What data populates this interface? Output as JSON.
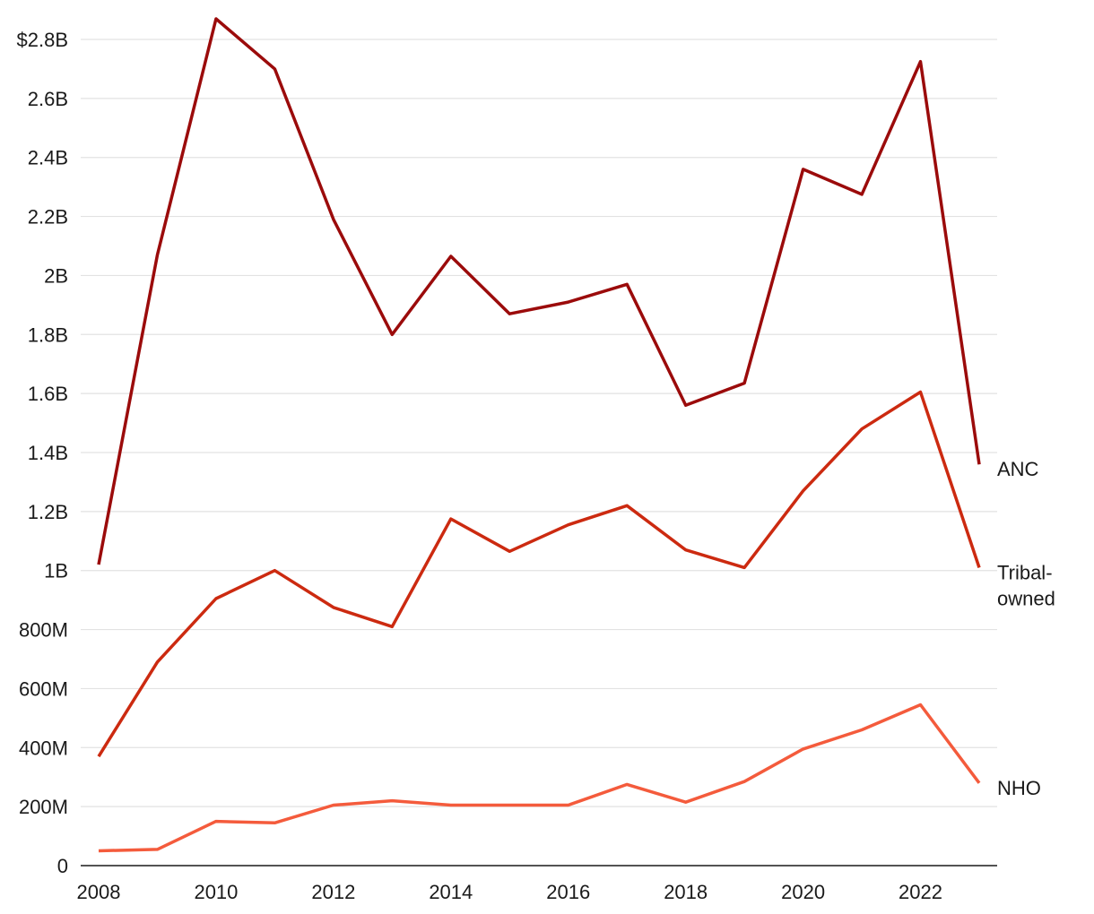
{
  "chart_data": {
    "type": "line",
    "x": [
      2008,
      2009,
      2010,
      2011,
      2012,
      2013,
      2014,
      2015,
      2016,
      2017,
      2018,
      2019,
      2020,
      2021,
      2022,
      2023
    ],
    "xlim": [
      2008,
      2023
    ],
    "ylim": [
      0,
      2800000000
    ],
    "x_ticks": [
      2008,
      2010,
      2012,
      2014,
      2016,
      2018,
      2020,
      2022
    ],
    "x_tick_labels": [
      "2008",
      "2010",
      "2012",
      "2014",
      "2016",
      "2018",
      "2020",
      "2022"
    ],
    "y_ticks": [
      0,
      200000000,
      400000000,
      600000000,
      800000000,
      1000000000,
      1200000000,
      1400000000,
      1600000000,
      1800000000,
      2000000000,
      2200000000,
      2400000000,
      2600000000,
      2800000000
    ],
    "y_tick_labels": [
      "0",
      "200M",
      "400M",
      "600M",
      "800M",
      "1B",
      "1.2B",
      "1.4B",
      "1.6B",
      "1.8B",
      "2B",
      "2.2B",
      "2.4B",
      "2.6B",
      "$2.8B"
    ],
    "grid": true,
    "legend": "direct labels at line ends (right)",
    "series": [
      {
        "name": "ANC",
        "label_lines": [
          "ANC"
        ],
        "color": "#9b0b0b",
        "values": [
          1020000000,
          2070000000,
          2870000000,
          2700000000,
          2190000000,
          1800000000,
          2065000000,
          1870000000,
          1910000000,
          1970000000,
          1560000000,
          1635000000,
          2360000000,
          2275000000,
          2725000000,
          1360000000
        ]
      },
      {
        "name": "Tribal-owned",
        "label_lines": [
          "Tribal-",
          "owned"
        ],
        "color": "#cc2a10",
        "values": [
          370000000,
          690000000,
          905000000,
          1000000000,
          875000000,
          810000000,
          1175000000,
          1065000000,
          1155000000,
          1220000000,
          1070000000,
          1010000000,
          1270000000,
          1480000000,
          1605000000,
          1010000000
        ]
      },
      {
        "name": "NHO",
        "label_lines": [
          "NHO"
        ],
        "color": "#f45b3c",
        "values": [
          50000000,
          55000000,
          150000000,
          145000000,
          205000000,
          220000000,
          205000000,
          205000000,
          205000000,
          275000000,
          215000000,
          285000000,
          395000000,
          460000000,
          545000000,
          280000000
        ]
      }
    ]
  }
}
